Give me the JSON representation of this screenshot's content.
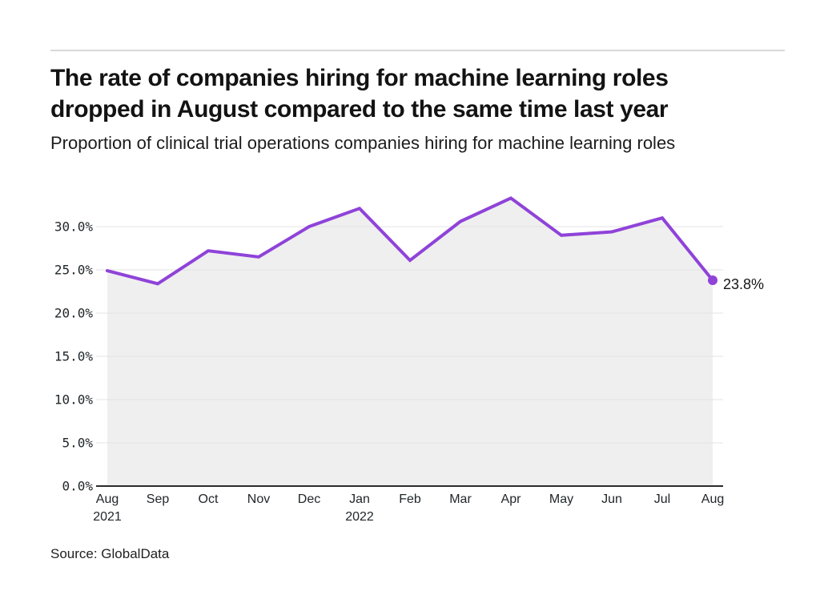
{
  "chart_data": {
    "type": "area",
    "title_lines": [
      "The rate of companies hiring for machine learning roles",
      "dropped in August compared to the same time last year"
    ],
    "subtitle": "Proportion of clinical trial operations companies hiring for machine learning roles",
    "source": "Source: GlobalData",
    "categories": [
      "Aug 2021",
      "Sep 2021",
      "Oct 2021",
      "Nov 2021",
      "Dec 2021",
      "Jan 2022",
      "Feb 2022",
      "Mar 2022",
      "Apr 2022",
      "May 2022",
      "Jun 2022",
      "Jul 2022",
      "Aug 2022"
    ],
    "month_labels": [
      "Aug",
      "Sep",
      "Oct",
      "Nov",
      "Dec",
      "Jan",
      "Feb",
      "Mar",
      "Apr",
      "May",
      "Jun",
      "Jul",
      "Aug"
    ],
    "year_labels": [
      {
        "index": 0,
        "text": "2021"
      },
      {
        "index": 5,
        "text": "2022"
      }
    ],
    "values": [
      24.9,
      23.4,
      27.2,
      26.5,
      30.0,
      32.1,
      26.1,
      30.6,
      33.3,
      29.0,
      29.4,
      31.0,
      23.8
    ],
    "unit": "%",
    "end_label": "23.8%",
    "y_ticks": [
      0,
      5,
      10,
      15,
      20,
      25,
      30
    ],
    "y_tick_labels": [
      "0.0%",
      "5.0%",
      "10.0%",
      "15.0%",
      "20.0%",
      "25.0%",
      "30.0%"
    ],
    "ylim": [
      0,
      34
    ],
    "grid": true,
    "legend": "none",
    "colors": {
      "line": "#8f43d9",
      "area": "#efefef",
      "gridline": "#e3e3e3",
      "axis": "#2b2b2b",
      "tick_text": "#21272a",
      "annotation_text": "#161616"
    }
  }
}
